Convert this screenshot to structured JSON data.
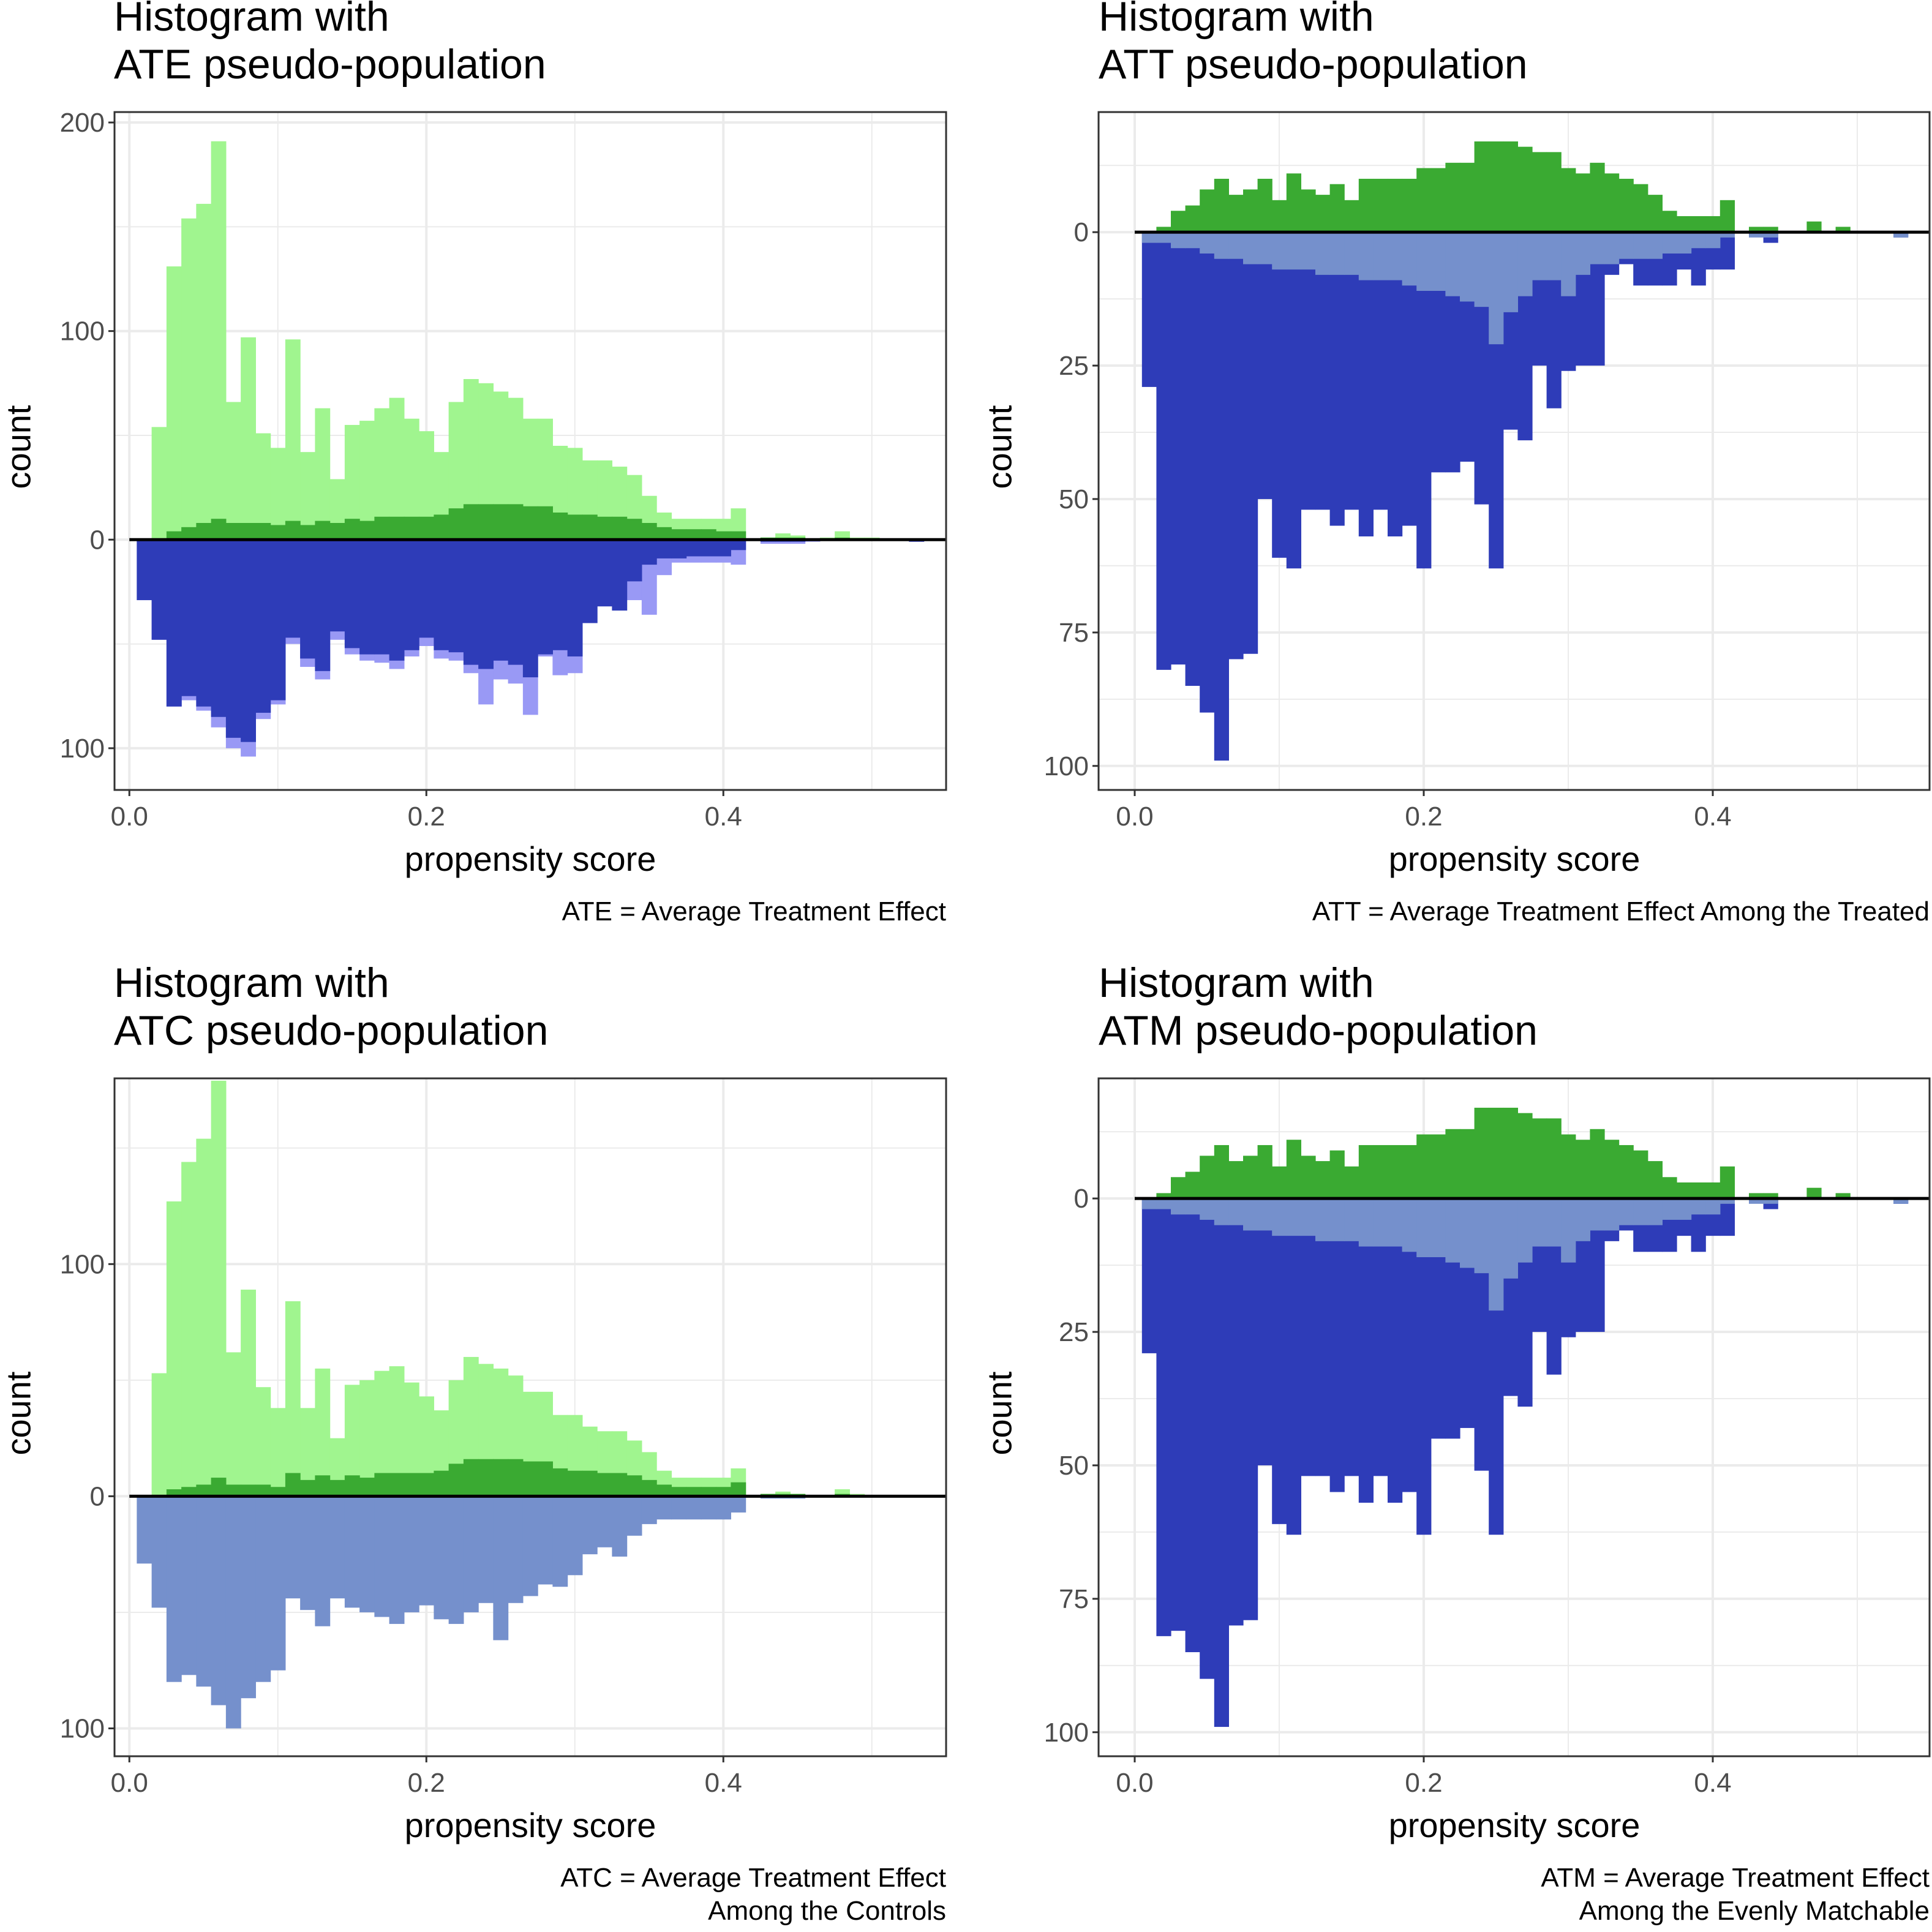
{
  "colors": {
    "treated_weighted": "#a0f58f",
    "treated_observed": "#3aaa32",
    "control_weighted_highlight": "#9999f5",
    "control_observed": "#2e3cb8",
    "control_weighted_soft": "#7590cc",
    "zero_line": "#000000",
    "grid": "#ebebeb",
    "axis_text": "#4d4d4d"
  },
  "chart_data": [
    {
      "id": "ate",
      "type": "bar",
      "title_line1": "Histogram with",
      "title_line2": "ATE pseudo-population",
      "xlabel": "propensity score",
      "ylabel": "count",
      "caption_line1": "ATE = Average Treatment Effect",
      "caption_line2": "",
      "xlim": [
        -0.01,
        0.55
      ],
      "ylim": [
        -120,
        205
      ],
      "xticks": [
        0.0,
        0.2,
        0.4
      ],
      "xtick_labels": [
        "0.0",
        "0.2",
        "0.4"
      ],
      "yticks": [
        200,
        100,
        0,
        -100
      ],
      "ytick_labels": [
        "200",
        "100",
        "0",
        "100"
      ],
      "bin_width": 0.01,
      "bin_starts": [
        0.005,
        0.015,
        0.025,
        0.035,
        0.045,
        0.055,
        0.065,
        0.075,
        0.085,
        0.095,
        0.105,
        0.115,
        0.125,
        0.135,
        0.145,
        0.155,
        0.165,
        0.175,
        0.185,
        0.195,
        0.205,
        0.215,
        0.225,
        0.235,
        0.245,
        0.255,
        0.265,
        0.275,
        0.285,
        0.295,
        0.305,
        0.315,
        0.325,
        0.335,
        0.345,
        0.355,
        0.365,
        0.375,
        0.385,
        0.395,
        0.405,
        0.415,
        0.425,
        0.435,
        0.445,
        0.455,
        0.465,
        0.475,
        0.485,
        0.495,
        0.505,
        0.515,
        0.525
      ],
      "series": [
        {
          "role": "treated_weighted",
          "side": "up",
          "values": [
            0,
            54,
            131,
            154,
            161,
            191,
            66,
            97,
            51,
            44,
            96,
            42,
            63,
            29,
            55,
            57,
            63,
            68,
            58,
            52,
            42,
            66,
            77,
            75,
            71,
            68,
            58,
            58,
            45,
            44,
            38,
            38,
            35,
            31,
            21,
            13,
            10,
            10,
            10,
            10,
            15,
            0,
            1,
            3,
            2,
            0,
            1,
            4,
            1,
            1,
            0,
            0,
            0
          ]
        },
        {
          "role": "treated_observed",
          "side": "up",
          "values": [
            0,
            0,
            4,
            6,
            8,
            10,
            8,
            8,
            8,
            7,
            9,
            7,
            9,
            8,
            10,
            9,
            11,
            11,
            11,
            11,
            12,
            15,
            17,
            17,
            17,
            17,
            16,
            16,
            13,
            12,
            12,
            11,
            11,
            10,
            8,
            6,
            5,
            5,
            5,
            4,
            4,
            0,
            1,
            1,
            1,
            0,
            0,
            1,
            0,
            0,
            0,
            0,
            0
          ]
        },
        {
          "role": "control_weighted_highlight",
          "side": "down",
          "values": [
            29,
            48,
            80,
            77,
            82,
            90,
            100,
            104,
            86,
            79,
            50,
            61,
            67,
            48,
            55,
            58,
            59,
            62,
            56,
            51,
            57,
            58,
            64,
            79,
            67,
            69,
            84,
            56,
            65,
            64,
            32,
            22,
            26,
            29,
            36,
            17,
            11,
            11,
            11,
            11,
            12,
            0,
            2,
            2,
            2,
            1,
            0,
            0,
            0,
            0,
            0,
            0,
            1
          ]
        },
        {
          "role": "control_observed",
          "side": "down",
          "values": [
            29,
            48,
            80,
            75,
            80,
            85,
            95,
            97,
            83,
            77,
            47,
            57,
            63,
            44,
            52,
            55,
            55,
            58,
            53,
            47,
            53,
            54,
            60,
            62,
            58,
            60,
            66,
            55,
            53,
            56,
            40,
            32,
            34,
            20,
            12,
            9,
            9,
            8,
            8,
            8,
            5,
            0,
            1,
            1,
            1,
            0,
            0,
            0,
            0,
            0,
            0,
            0,
            1
          ]
        }
      ]
    },
    {
      "id": "att",
      "type": "bar",
      "title_line1": "Histogram with",
      "title_line2": "ATT pseudo-population",
      "xlabel": "propensity score",
      "ylabel": "count",
      "caption_line1": "ATT = Average Treatment Effect Among the Treated",
      "caption_line2": "",
      "xlim": [
        -0.025,
        0.55
      ],
      "ylim": [
        -104.5,
        22.5
      ],
      "xticks": [
        0.0,
        0.2,
        0.4
      ],
      "xtick_labels": [
        "0.0",
        "0.2",
        "0.4"
      ],
      "yticks": [
        0,
        -25,
        -50,
        -75,
        -100
      ],
      "ytick_labels": [
        "0",
        "25",
        "50",
        "75",
        "100"
      ],
      "bin_width": 0.01,
      "bin_starts": [
        0.005,
        0.015,
        0.025,
        0.035,
        0.045,
        0.055,
        0.065,
        0.075,
        0.085,
        0.095,
        0.105,
        0.115,
        0.125,
        0.135,
        0.145,
        0.155,
        0.165,
        0.175,
        0.185,
        0.195,
        0.205,
        0.215,
        0.225,
        0.235,
        0.245,
        0.255,
        0.265,
        0.275,
        0.285,
        0.295,
        0.305,
        0.315,
        0.325,
        0.335,
        0.345,
        0.355,
        0.365,
        0.375,
        0.385,
        0.395,
        0.405,
        0.415,
        0.425,
        0.435,
        0.445,
        0.455,
        0.465,
        0.475,
        0.485,
        0.495,
        0.505,
        0.515,
        0.525
      ],
      "series": [
        {
          "role": "treated_observed",
          "side": "up",
          "values": [
            0,
            1,
            4,
            5,
            8,
            10,
            7,
            8,
            10,
            6,
            11,
            8,
            7,
            9,
            6,
            10,
            10,
            10,
            10,
            12,
            12,
            13,
            13,
            17,
            17,
            17,
            16,
            15,
            15,
            12,
            11,
            13,
            11,
            10,
            9,
            7,
            4,
            3,
            3,
            3,
            6,
            0,
            1,
            1,
            0,
            0,
            2,
            0,
            1,
            0,
            0,
            0,
            0
          ]
        },
        {
          "role": "control_observed",
          "side": "down",
          "values": [
            29,
            82,
            81,
            85,
            90,
            99,
            80,
            79,
            50,
            61,
            63,
            52,
            52,
            55,
            52,
            57,
            52,
            57,
            55,
            63,
            45,
            45,
            43,
            51,
            63,
            37,
            39,
            25,
            33,
            26,
            25,
            25,
            8,
            6,
            10,
            10,
            10,
            7,
            10,
            7,
            7,
            0,
            0,
            2,
            0,
            0,
            0,
            0,
            0,
            0,
            0,
            0,
            1
          ]
        },
        {
          "role": "control_weighted_soft",
          "side": "down",
          "values": [
            2,
            2,
            3,
            3,
            4,
            5,
            5,
            6,
            6,
            7,
            7,
            7,
            8,
            8,
            8,
            9,
            9,
            9,
            10,
            11,
            11,
            12,
            13,
            14,
            21,
            15,
            12,
            9,
            9,
            12,
            8,
            6,
            6,
            5,
            5,
            5,
            4,
            4,
            3,
            3,
            1,
            0,
            1,
            1,
            0,
            0,
            0,
            0,
            0,
            0,
            0,
            0,
            1
          ]
        }
      ]
    },
    {
      "id": "atc",
      "type": "bar",
      "title_line1": "Histogram with",
      "title_line2": "ATC pseudo-population",
      "xlabel": "propensity score",
      "ylabel": "count",
      "caption_line1": "ATC = Average Treatment Effect",
      "caption_line2": "Among the Controls",
      "xlim": [
        -0.01,
        0.55
      ],
      "ylim": [
        -112,
        180
      ],
      "xticks": [
        0.0,
        0.2,
        0.4
      ],
      "xtick_labels": [
        "0.0",
        "0.2",
        "0.4"
      ],
      "yticks": [
        100,
        0,
        -100
      ],
      "ytick_labels": [
        "100",
        "0",
        "100"
      ],
      "bin_width": 0.01,
      "bin_starts": [
        0.005,
        0.015,
        0.025,
        0.035,
        0.045,
        0.055,
        0.065,
        0.075,
        0.085,
        0.095,
        0.105,
        0.115,
        0.125,
        0.135,
        0.145,
        0.155,
        0.165,
        0.175,
        0.185,
        0.195,
        0.205,
        0.215,
        0.225,
        0.235,
        0.245,
        0.255,
        0.265,
        0.275,
        0.285,
        0.295,
        0.305,
        0.315,
        0.325,
        0.335,
        0.345,
        0.355,
        0.365,
        0.375,
        0.385,
        0.395,
        0.405,
        0.415,
        0.425,
        0.435,
        0.445,
        0.455,
        0.465,
        0.475,
        0.485,
        0.495,
        0.505,
        0.515,
        0.525
      ],
      "series": [
        {
          "role": "treated_weighted",
          "side": "up",
          "values": [
            0,
            53,
            127,
            144,
            154,
            179,
            62,
            89,
            47,
            38,
            84,
            38,
            55,
            25,
            48,
            50,
            54,
            56,
            49,
            43,
            37,
            50,
            60,
            57,
            55,
            52,
            45,
            45,
            35,
            35,
            30,
            28,
            28,
            24,
            19,
            11,
            8,
            8,
            8,
            8,
            12,
            0,
            1,
            2,
            1,
            0,
            0,
            3,
            1,
            0,
            0,
            0,
            0
          ]
        },
        {
          "role": "treated_observed",
          "side": "up",
          "values": [
            0,
            0,
            3,
            4,
            5,
            8,
            5,
            5,
            5,
            4,
            10,
            7,
            9,
            7,
            9,
            8,
            10,
            10,
            10,
            10,
            11,
            14,
            16,
            16,
            16,
            16,
            15,
            15,
            12,
            11,
            11,
            10,
            10,
            9,
            7,
            5,
            4,
            4,
            4,
            4,
            6,
            0,
            1,
            1,
            1,
            0,
            0,
            1,
            0,
            0,
            0,
            0,
            0
          ]
        },
        {
          "role": "control_weighted_soft",
          "side": "down",
          "values": [
            29,
            48,
            80,
            77,
            82,
            90,
            100,
            87,
            80,
            75,
            44,
            49,
            56,
            44,
            48,
            50,
            52,
            55,
            50,
            47,
            53,
            55,
            50,
            46,
            62,
            46,
            43,
            38,
            39,
            34,
            25,
            22,
            26,
            17,
            12,
            10,
            10,
            10,
            10,
            10,
            7,
            0,
            1,
            1,
            1,
            0,
            0,
            0,
            0,
            0,
            0,
            0,
            0
          ]
        }
      ]
    },
    {
      "id": "atm",
      "type": "bar",
      "title_line1": "Histogram with",
      "title_line2": "ATM pseudo-population",
      "xlabel": "propensity score",
      "ylabel": "count",
      "caption_line1": "ATM = Average Treatment Effect",
      "caption_line2": "Among the Evenly Matchable",
      "xlim": [
        -0.025,
        0.55
      ],
      "ylim": [
        -104.5,
        22.5
      ],
      "xticks": [
        0.0,
        0.2,
        0.4
      ],
      "xtick_labels": [
        "0.0",
        "0.2",
        "0.4"
      ],
      "yticks": [
        0,
        -25,
        -50,
        -75,
        -100
      ],
      "ytick_labels": [
        "0",
        "25",
        "50",
        "75",
        "100"
      ],
      "bin_width": 0.01,
      "bin_starts": [
        0.005,
        0.015,
        0.025,
        0.035,
        0.045,
        0.055,
        0.065,
        0.075,
        0.085,
        0.095,
        0.105,
        0.115,
        0.125,
        0.135,
        0.145,
        0.155,
        0.165,
        0.175,
        0.185,
        0.195,
        0.205,
        0.215,
        0.225,
        0.235,
        0.245,
        0.255,
        0.265,
        0.275,
        0.285,
        0.295,
        0.305,
        0.315,
        0.325,
        0.335,
        0.345,
        0.355,
        0.365,
        0.375,
        0.385,
        0.395,
        0.405,
        0.415,
        0.425,
        0.435,
        0.445,
        0.455,
        0.465,
        0.475,
        0.485,
        0.495,
        0.505,
        0.515,
        0.525
      ],
      "series": [
        {
          "role": "treated_observed",
          "side": "up",
          "values": [
            0,
            1,
            4,
            5,
            8,
            10,
            7,
            8,
            10,
            6,
            11,
            8,
            7,
            9,
            6,
            10,
            10,
            10,
            10,
            12,
            12,
            13,
            13,
            17,
            17,
            17,
            16,
            15,
            15,
            12,
            11,
            13,
            11,
            10,
            9,
            7,
            4,
            3,
            3,
            3,
            6,
            0,
            1,
            1,
            0,
            0,
            2,
            0,
            1,
            0,
            0,
            0,
            0
          ]
        },
        {
          "role": "control_observed",
          "side": "down",
          "values": [
            29,
            82,
            81,
            85,
            90,
            99,
            80,
            79,
            50,
            61,
            63,
            52,
            52,
            55,
            52,
            57,
            52,
            57,
            55,
            63,
            45,
            45,
            43,
            51,
            63,
            37,
            39,
            25,
            33,
            26,
            25,
            25,
            8,
            6,
            10,
            10,
            10,
            7,
            10,
            7,
            7,
            0,
            0,
            2,
            0,
            0,
            0,
            0,
            0,
            0,
            0,
            0,
            1
          ]
        },
        {
          "role": "control_weighted_soft",
          "side": "down",
          "values": [
            2,
            2,
            3,
            3,
            4,
            5,
            5,
            6,
            6,
            7,
            7,
            7,
            8,
            8,
            8,
            9,
            9,
            9,
            10,
            11,
            11,
            12,
            13,
            14,
            21,
            15,
            12,
            9,
            9,
            12,
            8,
            6,
            6,
            5,
            5,
            5,
            4,
            4,
            3,
            3,
            1,
            0,
            1,
            1,
            0,
            0,
            0,
            0,
            0,
            0,
            0,
            0,
            1
          ]
        }
      ]
    }
  ]
}
